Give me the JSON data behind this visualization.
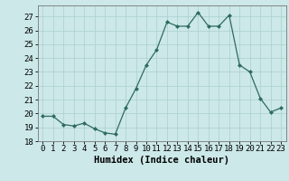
{
  "x": [
    0,
    1,
    2,
    3,
    4,
    5,
    6,
    7,
    8,
    9,
    10,
    11,
    12,
    13,
    14,
    15,
    16,
    17,
    18,
    19,
    20,
    21,
    22,
    23
  ],
  "y": [
    19.8,
    19.8,
    19.2,
    19.1,
    19.3,
    18.9,
    18.6,
    18.5,
    20.4,
    21.8,
    23.5,
    24.6,
    26.6,
    26.3,
    26.3,
    27.3,
    26.3,
    26.3,
    27.1,
    23.5,
    23.0,
    21.1,
    20.1,
    20.4
  ],
  "line_color": "#2e6b5e",
  "marker": "D",
  "marker_size": 2.0,
  "bg_color": "#cce8e8",
  "grid_color": "#aacfcf",
  "xlabel": "Humidex (Indice chaleur)",
  "xlabel_fontsize": 7.5,
  "ylim": [
    18,
    27.8
  ],
  "xlim": [
    -0.5,
    23.5
  ],
  "yticks": [
    18,
    19,
    20,
    21,
    22,
    23,
    24,
    25,
    26,
    27
  ],
  "xticks": [
    0,
    1,
    2,
    3,
    4,
    5,
    6,
    7,
    8,
    9,
    10,
    11,
    12,
    13,
    14,
    15,
    16,
    17,
    18,
    19,
    20,
    21,
    22,
    23
  ],
  "tick_fontsize": 6.5
}
